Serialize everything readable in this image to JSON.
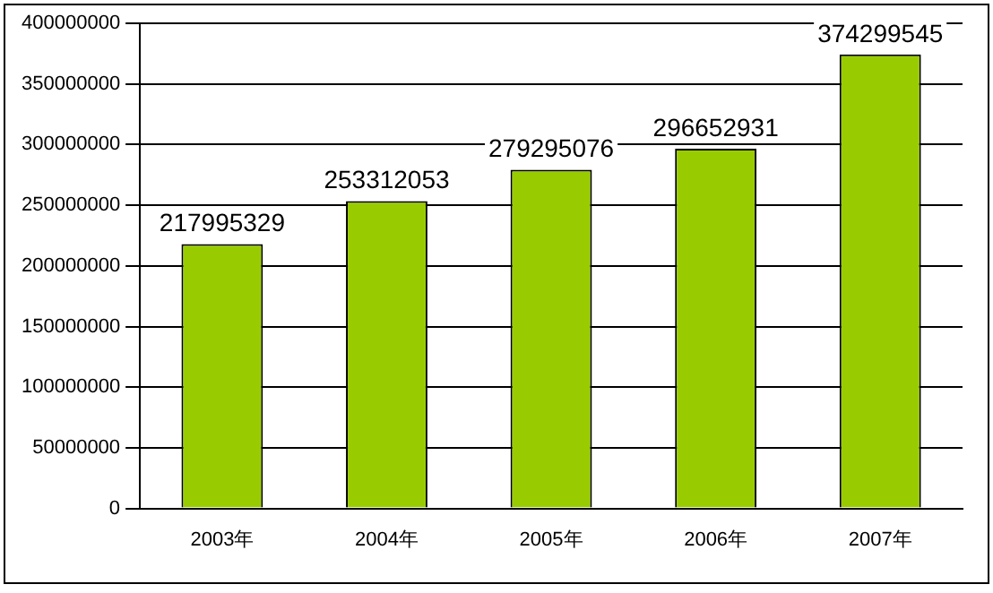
{
  "chart_data": {
    "type": "bar",
    "categories": [
      "2003年",
      "2004年",
      "2005年",
      "2006年",
      "2007年"
    ],
    "values": [
      217995329,
      253312053,
      279295076,
      296652931,
      374299545
    ],
    "color": "#99cc00",
    "ylim": [
      0,
      400000000
    ],
    "yticks": [
      0,
      50000000,
      100000000,
      150000000,
      200000000,
      250000000,
      300000000,
      350000000,
      400000000
    ],
    "grid": "y",
    "legend": false,
    "data_labels": true
  }
}
